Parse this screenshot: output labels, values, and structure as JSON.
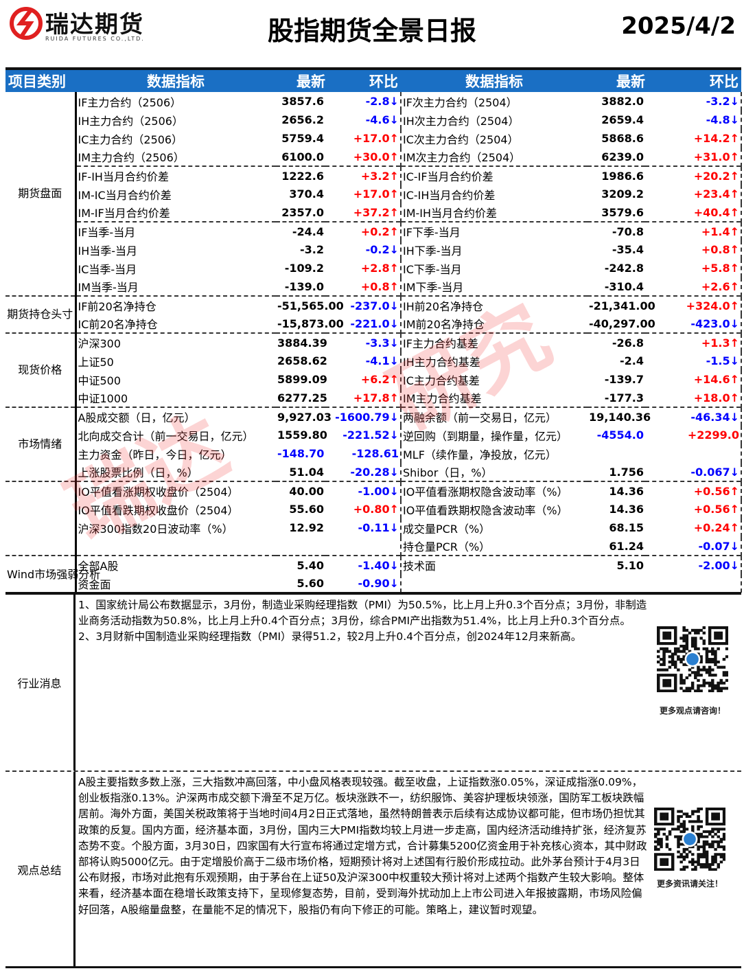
{
  "header": {
    "logo_cn": "瑞达期货",
    "logo_en": "RUIDA FUTURES CO.,LTD.",
    "title": "股指期货全景日报",
    "date": "2025/4/2",
    "brand_color": "#e02020"
  },
  "table": {
    "headers": [
      "项目类别",
      "数据指标",
      "最新",
      "环比",
      "数据指标",
      "最新",
      "环比"
    ],
    "header_color": "#1a6fc4",
    "up_color": "#ff0000",
    "down_color": "#0000ff",
    "groups": [
      {
        "category": "期货盘面",
        "rows": [
          {
            "l": [
              "IF主力合约（2506）",
              "3857.6",
              "-2.8↓"
            ],
            "r": [
              "IF次主力合约（2504）",
              "3882.0",
              "-3.2↓"
            ]
          },
          {
            "l": [
              "IH主力合约（2506）",
              "2656.2",
              "-4.6↓"
            ],
            "r": [
              "IH次主力合约（2504）",
              "2659.4",
              "-4.8↓"
            ]
          },
          {
            "l": [
              "IC主力合约（2506）",
              "5759.4",
              "+17.0↑"
            ],
            "r": [
              "IC次主力合约（2504）",
              "5868.6",
              "+14.2↑"
            ]
          },
          {
            "l": [
              "IM主力合约（2506）",
              "6100.0",
              "+30.0↑"
            ],
            "r": [
              "IM次主力合约（2504）",
              "6239.0",
              "+31.0↑"
            ]
          },
          {
            "sep": true,
            "l": [
              "IF-IH当月合约价差",
              "1222.6",
              "+3.2↑"
            ],
            "r": [
              "IC-IF当月合约价差",
              "1986.6",
              "+20.2↑"
            ]
          },
          {
            "l": [
              "IM-IC当月合约价差",
              "370.4",
              "+17.0↑"
            ],
            "r": [
              "IC-IH当月合约价差",
              "3209.2",
              "+23.4↑"
            ]
          },
          {
            "l": [
              "IM-IF当月合约价差",
              "2357.0",
              "+37.2↑"
            ],
            "r": [
              "IM-IH当月合约价差",
              "3579.6",
              "+40.4↑"
            ]
          },
          {
            "sep": true,
            "l": [
              "IF当季-当月",
              "-24.4",
              "+0.2↑"
            ],
            "r": [
              "IF下季-当月",
              "-70.8",
              "+1.4↑"
            ]
          },
          {
            "l": [
              "IH当季-当月",
              "-3.2",
              "-0.2↓"
            ],
            "r": [
              "IH下季-当月",
              "-35.4",
              "+0.8↑"
            ]
          },
          {
            "l": [
              "IC当季-当月",
              "-109.2",
              "+2.8↑"
            ],
            "r": [
              "IC下季-当月",
              "-242.8",
              "+5.8↑"
            ]
          },
          {
            "l": [
              "IM当季-当月",
              "-139.0",
              "+0.8↑"
            ],
            "r": [
              "IM下季-当月",
              "-310.4",
              "+2.6↑"
            ]
          }
        ]
      },
      {
        "category": "期货持仓头寸",
        "rows": [
          {
            "l": [
              "IF前20名净持仓",
              "-51,565.00",
              "-237.0↓"
            ],
            "r": [
              "IH前20名净持仓",
              "-21,341.00",
              "+324.0↑"
            ]
          },
          {
            "l": [
              "IC前20名净持仓",
              "-15,873.00",
              "-221.0↓"
            ],
            "r": [
              "IM前20名净持仓",
              "-40,297.00",
              "-423.0↓"
            ]
          }
        ]
      },
      {
        "category": "现货价格",
        "rows": [
          {
            "l": [
              "沪深300",
              "3884.39",
              "-3.3↓"
            ],
            "r": [
              "IF主力合约基差",
              "-26.8",
              "+1.3↑"
            ]
          },
          {
            "l": [
              "上证50",
              "2658.62",
              "-4.1↓"
            ],
            "r": [
              "IH主力合约基差",
              "-2.4",
              "-1.5↓"
            ]
          },
          {
            "l": [
              "中证500",
              "5899.09",
              "+6.2↑"
            ],
            "r": [
              "IC主力合约基差",
              "-139.7",
              "+14.6↑"
            ]
          },
          {
            "l": [
              "中证1000",
              "6277.25",
              "+17.8↑"
            ],
            "r": [
              "IM主力合约基差",
              "-177.3",
              "+18.0↑"
            ]
          }
        ]
      },
      {
        "category": "市场情绪",
        "rows": [
          {
            "l": [
              "A股成交额（日，亿元）",
              "9,927.03",
              "-1600.79↓"
            ],
            "r": [
              "两融余额（前一交易日，亿元）",
              "19,140.36",
              "-46.34↓"
            ]
          },
          {
            "l": [
              "北向成交合计（前一交易日，亿元）",
              "1559.80",
              "-221.52↓"
            ],
            "r": [
              "逆回购（到期量，操作量，亿元）",
              "-4554.0",
              "+2299.0"
            ],
            "r_value_color": "#0000ff"
          },
          {
            "l": [
              "主力资金（昨日，今日，亿元）",
              "-148.70",
              "-128.61"
            ],
            "l_value_color": "#0000ff",
            "r": [
              "MLF（续作量，净投放，亿元）",
              "",
              ""
            ]
          },
          {
            "l": [
              "上涨股票比例（日，%）",
              "51.04",
              "-20.28↓"
            ],
            "r": [
              "Shibor（日，%）",
              "1.756",
              "-0.067↓"
            ]
          }
        ]
      },
      {
        "category": "",
        "rows": [
          {
            "l": [
              "IO平值看涨期权收盘价（2504）",
              "40.00",
              "-1.00↓"
            ],
            "r": [
              "IO平值看涨期权隐含波动率（%）",
              "14.36",
              "+0.56↑"
            ]
          },
          {
            "l": [
              "IO平值看跌期权收盘价（2504）",
              "55.60",
              "+0.80↑"
            ],
            "r": [
              "IO平值看跌期权隐含波动率（%）",
              "14.36",
              "+0.56↑"
            ]
          },
          {
            "l": [
              "沪深300指数20日波动率（%）",
              "12.92",
              "-0.11↓"
            ],
            "r": [
              "成交量PCR（%）",
              "68.15",
              "+0.24↑"
            ]
          },
          {
            "l": [
              "",
              "",
              ""
            ],
            "r": [
              "持仓量PCR（%）",
              "61.24",
              "-0.07↓"
            ]
          }
        ]
      },
      {
        "category": "Wind市场强弱分析",
        "rows": [
          {
            "l": [
              "全部A股",
              "5.40",
              "-1.40↓"
            ],
            "r": [
              "技术面",
              "5.10",
              "-2.00↓"
            ]
          },
          {
            "l": [
              "资金面",
              "5.60",
              "-0.90↓"
            ],
            "r": [
              "",
              "",
              ""
            ]
          }
        ]
      }
    ]
  },
  "news": {
    "label": "行业消息",
    "lines": [
      "1、国家统计局公布数据显示，3月份，制造业采购经理指数（PMI）为50.5%，比上月上升0.3个百分点；3月份，非制造业商务活动指数为50.8%，比上月上升0.4个百分点；3月份，综合PMI产出指数为51.4%，比上月上升0.3个百分点。",
      "2、3月财新中国制造业采购经理指数（PMI）录得51.2，较2月上升0.4个百分点，创2024年12月来新高。"
    ],
    "qr_caption": "更多观点请咨询！"
  },
  "summary": {
    "label": "观点总结",
    "text": "A股主要指数多数上涨，三大指数冲高回落，中小盘风格表现较强。截至收盘，上证指数涨0.05%，深证成指涨0.09%，创业板指涨0.13%。沪深两市成交额下滑至不足万亿。板块涨跌不一，纺织服饰、美容护理板块领涨，国防军工板块跌幅居前。海外方面，美国关税政策将于当地时间4月2日正式落地，虽然特朗普表示后续有达成协议都可能，但市场仍担忧其政策的反复。国内方面，经济基本面，3月份，国内三大PMI指数均较上月进一步走高，国内经济活动维持扩张，经济复苏态势不变。个股方面，3月30日，四家国有大行宣布将通过定增方式，合计募集5200亿资金用于补充核心资本，其中财政部将认购5000亿元。由于定增股价高于二级市场价格，短期预计将对上述国有行股价形成拉动。此外茅台预计于4月3日公布财报，市场对此抱有乐观预期，由于茅台在上证50及沪深300中权重较大预计将对上述两个指数产生较大影响。整体来看，经济基本面在稳增长政策支持下，呈现修复态势，目前，受到海外扰动加上上市公司进入年报披露期，市场风险偏好回落，A股缩量盘整，在量能不足的情况下，股指仍有向下修正的可能。策略上，建议暂时观望。",
    "qr_caption": "更多资讯请关注！"
  },
  "watermark": "瑞达研究"
}
